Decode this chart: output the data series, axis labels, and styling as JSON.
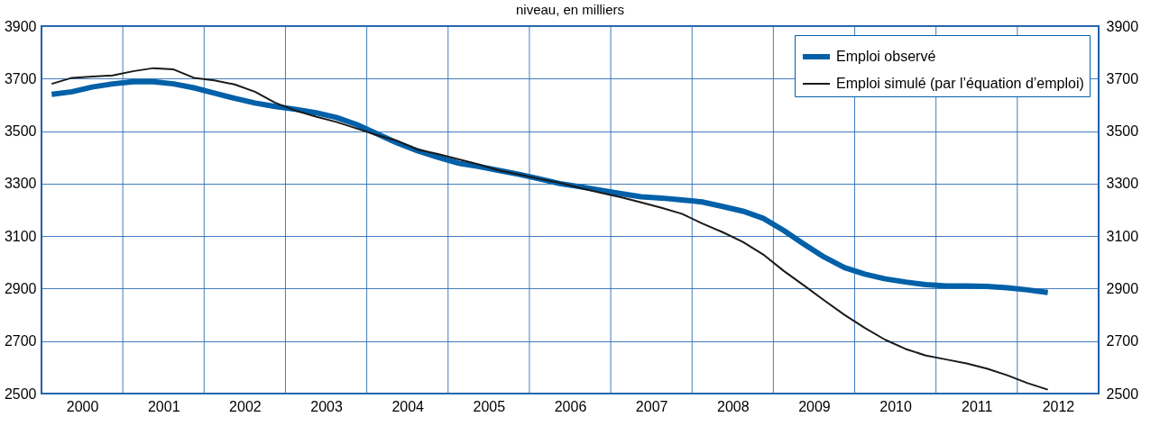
{
  "chart_data": {
    "type": "line",
    "title": "niveau, en milliers",
    "x": [
      2000.125,
      2000.375,
      2000.625,
      2000.875,
      2001.125,
      2001.375,
      2001.625,
      2001.875,
      2002.125,
      2002.375,
      2002.625,
      2002.875,
      2003.125,
      2003.375,
      2003.625,
      2003.875,
      2004.125,
      2004.375,
      2004.625,
      2004.875,
      2005.125,
      2005.375,
      2005.625,
      2005.875,
      2006.125,
      2006.375,
      2006.625,
      2006.875,
      2007.125,
      2007.375,
      2007.625,
      2007.875,
      2008.125,
      2008.375,
      2008.625,
      2008.875,
      2009.125,
      2009.375,
      2009.625,
      2009.875,
      2010.125,
      2010.375,
      2010.625,
      2010.875,
      2011.125,
      2011.375,
      2011.625,
      2011.875,
      2012.125,
      2012.375
    ],
    "series": [
      {
        "name": "Emploi observé",
        "color": "#0060a8",
        "values": [
          3640,
          3650,
          3668,
          3680,
          3688,
          3688,
          3680,
          3665,
          3645,
          3625,
          3607,
          3594,
          3583,
          3570,
          3552,
          3525,
          3490,
          3455,
          3425,
          3400,
          3378,
          3365,
          3350,
          3335,
          3318,
          3300,
          3288,
          3275,
          3262,
          3250,
          3245,
          3238,
          3230,
          3213,
          3195,
          3168,
          3122,
          3070,
          3020,
          2980,
          2955,
          2937,
          2925,
          2915,
          2910,
          2910,
          2908,
          2903,
          2895,
          2885
        ]
      },
      {
        "name": "Emploi simulé (par l’équation d’emploi)",
        "color": "#1a1a1a",
        "values": [
          3680,
          3703,
          3708,
          3712,
          3728,
          3740,
          3735,
          3703,
          3693,
          3678,
          3650,
          3608,
          3578,
          3555,
          3535,
          3510,
          3485,
          3463,
          3430,
          3413,
          3393,
          3373,
          3350,
          3335,
          3318,
          3303,
          3283,
          3265,
          3248,
          3228,
          3208,
          3185,
          3148,
          3115,
          3078,
          3030,
          2968,
          2912,
          2855,
          2800,
          2750,
          2705,
          2670,
          2645,
          2630,
          2615,
          2595,
          2570,
          2540,
          2515
        ]
      }
    ],
    "xlim": [
      2000,
      2013
    ],
    "xticks": [
      {
        "value": 2000.5,
        "label": "2000"
      },
      {
        "value": 2001,
        "label": null
      },
      {
        "value": 2001.5,
        "label": "2001"
      },
      {
        "value": 2002,
        "label": null
      },
      {
        "value": 2002.5,
        "label": "2002"
      },
      {
        "value": 2003,
        "label": null
      },
      {
        "value": 2003.5,
        "label": "2003"
      },
      {
        "value": 2004,
        "label": null
      },
      {
        "value": 2004.5,
        "label": "2004"
      },
      {
        "value": 2005,
        "label": null
      },
      {
        "value": 2005.5,
        "label": "2005"
      },
      {
        "value": 2006,
        "label": null
      },
      {
        "value": 2006.5,
        "label": "2006"
      },
      {
        "value": 2007,
        "label": null
      },
      {
        "value": 2007.5,
        "label": "2007"
      },
      {
        "value": 2008,
        "label": null
      },
      {
        "value": 2008.5,
        "label": "2008"
      },
      {
        "value": 2009,
        "label": null
      },
      {
        "value": 2009.5,
        "label": "2009"
      },
      {
        "value": 2010,
        "label": null
      },
      {
        "value": 2010.5,
        "label": "2010"
      },
      {
        "value": 2011,
        "label": null
      },
      {
        "value": 2011.5,
        "label": "2011"
      },
      {
        "value": 2012,
        "label": null
      },
      {
        "value": 2012.5,
        "label": "2012"
      }
    ],
    "ylim": [
      2500,
      3900
    ],
    "yticks": [
      2500,
      2700,
      2900,
      3100,
      3300,
      3500,
      3700,
      3900
    ],
    "y2lim": [
      2500,
      3900
    ],
    "y2ticks": [
      2500,
      2700,
      2900,
      3100,
      3300,
      3500,
      3700,
      3900
    ],
    "grid": true,
    "legend": "top right",
    "marker": "none",
    "line_style": "solid"
  }
}
